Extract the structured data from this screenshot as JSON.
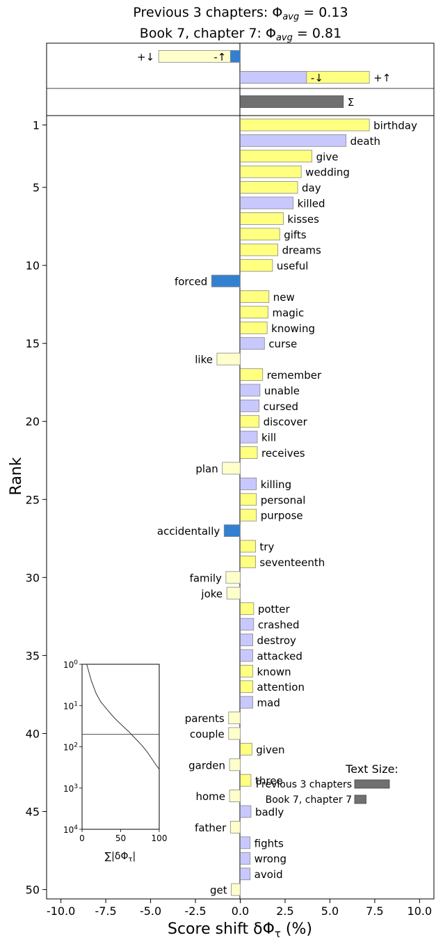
{
  "chart_data": {
    "type": "bar",
    "title_line1": "Previous 3 chapters: Φ",
    "title_line1_sub": "avg",
    "title_line1_value": " = 0.13",
    "title_line2": "Book 7, chapter 7: Φ",
    "title_line2_sub": "avg",
    "title_line2_value": " = 0.81",
    "xlabel": "Score shift δΦ",
    "xlabel_sub": "τ",
    "xlabel_unit": " (%)",
    "ylabel": "Rank",
    "xlim": [
      -10.8,
      10.8
    ],
    "ylim": [
      50.6,
      0.4
    ],
    "x_ticks": [
      -10,
      -7.5,
      -5,
      -2.5,
      0,
      2.5,
      5,
      7.5,
      10
    ],
    "x_tick_labels": [
      "-10.0",
      "-7.5",
      "-5.0",
      "-2.5",
      "0.0",
      "2.5",
      "5.0",
      "7.5",
      "10.0"
    ],
    "y_ticks": [
      1,
      5,
      10,
      15,
      20,
      25,
      30,
      35,
      40,
      45,
      50
    ],
    "colors": {
      "pos_up": "#ffff80",
      "pos_down": "#c8c8ff",
      "neg_up": "#3380d0",
      "neg_down": "#ffffcc",
      "total": "#707070",
      "edge": "#888888"
    },
    "summary": [
      {
        "label": "+↓",
        "value": -4.55,
        "kind": "neg_down"
      },
      {
        "label": "+↑",
        "value": 7.2,
        "kind": "pos_up"
      },
      {
        "label": "-↑",
        "value": -0.55,
        "kind": "neg_up"
      },
      {
        "label": "-↓",
        "value": 3.7,
        "kind": "pos_down"
      },
      {
        "label": "Σ",
        "value": 5.75,
        "kind": "total"
      }
    ],
    "words": [
      {
        "rank": 1,
        "word": "birthday",
        "value": 7.2,
        "kind": "pos_up"
      },
      {
        "rank": 2,
        "word": "death",
        "value": 5.9,
        "kind": "pos_down"
      },
      {
        "rank": 3,
        "word": "give",
        "value": 4.0,
        "kind": "pos_up"
      },
      {
        "rank": 4,
        "word": "wedding",
        "value": 3.4,
        "kind": "pos_up"
      },
      {
        "rank": 5,
        "word": "day",
        "value": 3.2,
        "kind": "pos_up"
      },
      {
        "rank": 6,
        "word": "killed",
        "value": 2.95,
        "kind": "pos_down"
      },
      {
        "rank": 7,
        "word": "kisses",
        "value": 2.4,
        "kind": "pos_up"
      },
      {
        "rank": 8,
        "word": "gifts",
        "value": 2.2,
        "kind": "pos_up"
      },
      {
        "rank": 9,
        "word": "dreams",
        "value": 2.1,
        "kind": "pos_up"
      },
      {
        "rank": 10,
        "word": "useful",
        "value": 1.8,
        "kind": "pos_up"
      },
      {
        "rank": 11,
        "word": "forced",
        "value": -1.6,
        "kind": "neg_up"
      },
      {
        "rank": 12,
        "word": "new",
        "value": 1.6,
        "kind": "pos_up"
      },
      {
        "rank": 13,
        "word": "magic",
        "value": 1.55,
        "kind": "pos_up"
      },
      {
        "rank": 14,
        "word": "knowing",
        "value": 1.5,
        "kind": "pos_up"
      },
      {
        "rank": 15,
        "word": "curse",
        "value": 1.35,
        "kind": "pos_down"
      },
      {
        "rank": 16,
        "word": "like",
        "value": -1.3,
        "kind": "neg_down"
      },
      {
        "rank": 17,
        "word": "remember",
        "value": 1.25,
        "kind": "pos_up"
      },
      {
        "rank": 18,
        "word": "unable",
        "value": 1.1,
        "kind": "pos_down"
      },
      {
        "rank": 19,
        "word": "cursed",
        "value": 1.05,
        "kind": "pos_down"
      },
      {
        "rank": 20,
        "word": "discover",
        "value": 1.05,
        "kind": "pos_up"
      },
      {
        "rank": 21,
        "word": "kill",
        "value": 0.95,
        "kind": "pos_down"
      },
      {
        "rank": 22,
        "word": "receives",
        "value": 0.95,
        "kind": "pos_up"
      },
      {
        "rank": 23,
        "word": "plan",
        "value": -1.0,
        "kind": "neg_down"
      },
      {
        "rank": 24,
        "word": "killing",
        "value": 0.9,
        "kind": "pos_down"
      },
      {
        "rank": 25,
        "word": "personal",
        "value": 0.9,
        "kind": "pos_up"
      },
      {
        "rank": 26,
        "word": "purpose",
        "value": 0.9,
        "kind": "pos_up"
      },
      {
        "rank": 27,
        "word": "accidentally",
        "value": -0.9,
        "kind": "neg_up"
      },
      {
        "rank": 28,
        "word": "try",
        "value": 0.85,
        "kind": "pos_up"
      },
      {
        "rank": 29,
        "word": "seventeenth",
        "value": 0.85,
        "kind": "pos_up"
      },
      {
        "rank": 30,
        "word": "family",
        "value": -0.8,
        "kind": "neg_down"
      },
      {
        "rank": 31,
        "word": "joke",
        "value": -0.75,
        "kind": "neg_down"
      },
      {
        "rank": 32,
        "word": "potter",
        "value": 0.75,
        "kind": "pos_up"
      },
      {
        "rank": 33,
        "word": "crashed",
        "value": 0.75,
        "kind": "pos_down"
      },
      {
        "rank": 34,
        "word": "destroy",
        "value": 0.7,
        "kind": "pos_down"
      },
      {
        "rank": 35,
        "word": "attacked",
        "value": 0.7,
        "kind": "pos_down"
      },
      {
        "rank": 36,
        "word": "known",
        "value": 0.7,
        "kind": "pos_up"
      },
      {
        "rank": 37,
        "word": "attention",
        "value": 0.7,
        "kind": "pos_up"
      },
      {
        "rank": 38,
        "word": "mad",
        "value": 0.7,
        "kind": "pos_down"
      },
      {
        "rank": 39,
        "word": "parents",
        "value": -0.65,
        "kind": "neg_down"
      },
      {
        "rank": 40,
        "word": "couple",
        "value": -0.65,
        "kind": "neg_down"
      },
      {
        "rank": 41,
        "word": "given",
        "value": 0.65,
        "kind": "pos_up"
      },
      {
        "rank": 42,
        "word": "garden",
        "value": -0.6,
        "kind": "neg_down"
      },
      {
        "rank": 43,
        "word": "three",
        "value": 0.6,
        "kind": "pos_up"
      },
      {
        "rank": 44,
        "word": "home",
        "value": -0.6,
        "kind": "neg_down"
      },
      {
        "rank": 45,
        "word": "badly",
        "value": 0.6,
        "kind": "pos_down"
      },
      {
        "rank": 46,
        "word": "father",
        "value": -0.55,
        "kind": "neg_down"
      },
      {
        "rank": 47,
        "word": "fights",
        "value": 0.55,
        "kind": "pos_down"
      },
      {
        "rank": 48,
        "word": "wrong",
        "value": 0.55,
        "kind": "pos_down"
      },
      {
        "rank": 49,
        "word": "avoid",
        "value": 0.55,
        "kind": "pos_down"
      },
      {
        "rank": 50,
        "word": "get",
        "value": -0.5,
        "kind": "neg_down"
      }
    ],
    "text_size_legend": {
      "title": "Text Size:",
      "items": [
        {
          "label": "Previous 3 chapters",
          "size": 1.0
        },
        {
          "label": "Book 7, chapter 7",
          "size": 0.33
        }
      ]
    },
    "inset": {
      "type": "line",
      "xlabel": "∑|δΦ",
      "xlabel_sub": "τ",
      "xlabel_end": "|",
      "xlim": [
        0,
        100
      ],
      "x_ticks": [
        0,
        50,
        100
      ],
      "y_scale": "log",
      "y_ticks": [
        {
          "base": "10",
          "exp": "0"
        },
        {
          "base": "10",
          "exp": "1"
        },
        {
          "base": "10",
          "exp": "2"
        },
        {
          "base": "10",
          "exp": "3"
        },
        {
          "base": "10",
          "exp": "4"
        }
      ],
      "y_tick_exponents": [
        0,
        1,
        2,
        3,
        4
      ],
      "y_range_exponents": [
        0,
        4
      ],
      "reference_rank": 50,
      "curve": [
        {
          "x": 6,
          "rank": 1
        },
        {
          "x": 12,
          "rank": 2.5
        },
        {
          "x": 18,
          "rank": 5
        },
        {
          "x": 24,
          "rank": 8
        },
        {
          "x": 30,
          "rank": 11
        },
        {
          "x": 36,
          "rank": 15
        },
        {
          "x": 42,
          "rank": 20
        },
        {
          "x": 48,
          "rank": 26
        },
        {
          "x": 54,
          "rank": 33
        },
        {
          "x": 60,
          "rank": 42
        },
        {
          "x": 66,
          "rank": 55
        },
        {
          "x": 72,
          "rank": 72
        },
        {
          "x": 78,
          "rank": 95
        },
        {
          "x": 84,
          "rank": 130
        },
        {
          "x": 90,
          "rank": 190
        },
        {
          "x": 96,
          "rank": 280
        },
        {
          "x": 100,
          "rank": 350
        }
      ]
    }
  }
}
